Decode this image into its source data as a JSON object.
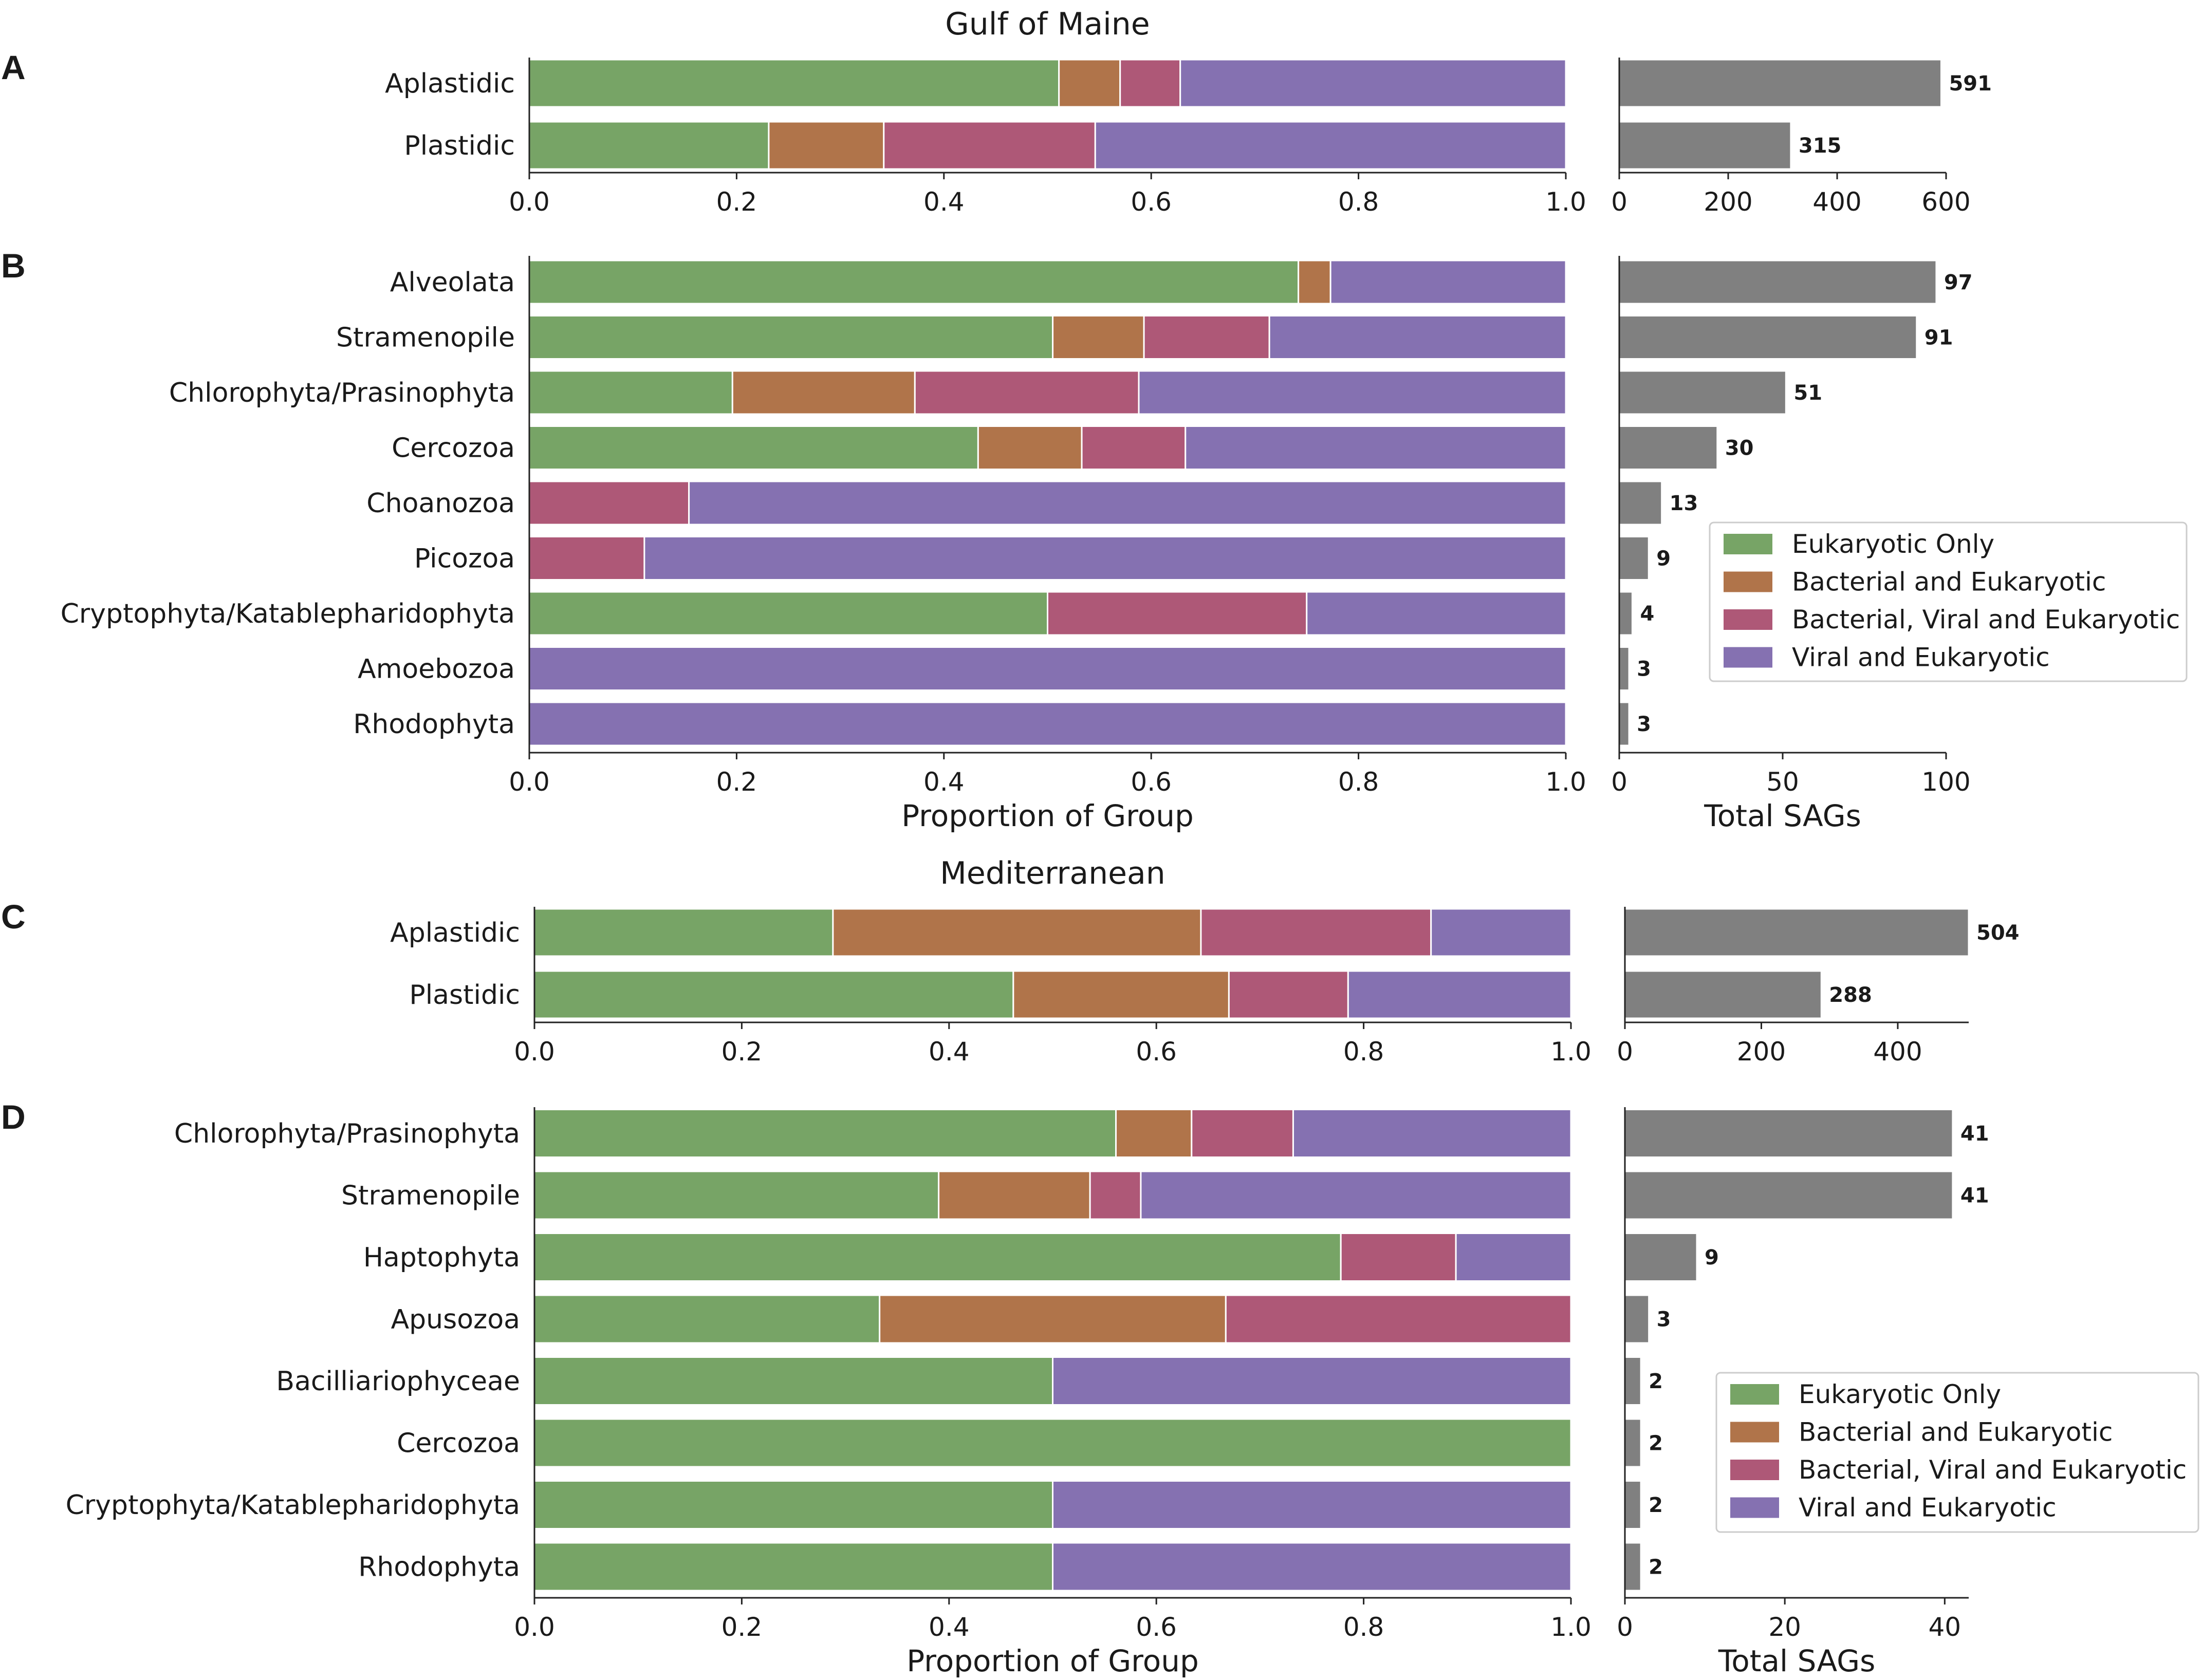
{
  "legend_items": [
    {
      "name": "Eukaryotic Only",
      "color": "#77a466"
    },
    {
      "name": "Bacterial and Eukaryotic",
      "color": "#b0744a"
    },
    {
      "name": "Bacterial, Viral and Eukaryotic",
      "color": "#ae5877"
    },
    {
      "name": "Viral and Eukaryotic",
      "color": "#8571b1"
    }
  ],
  "count_bar_color": "#808080",
  "chart_data": [
    {
      "panel": "A",
      "type": "bar",
      "orientation": "horizontal",
      "stacked": true,
      "title": "Gulf of Maine",
      "categories": [
        "Aplastidic",
        "Plastidic"
      ],
      "series": [
        {
          "name": "Eukaryotic Only",
          "values": [
            0.511,
            0.231
          ]
        },
        {
          "name": "Bacterial and Eukaryotic",
          "values": [
            0.059,
            0.111
          ]
        },
        {
          "name": "Bacterial, Viral and Eukaryotic",
          "values": [
            0.058,
            0.204
          ]
        },
        {
          "name": "Viral and Eukaryotic",
          "values": [
            0.372,
            0.454
          ]
        }
      ],
      "xlim": [
        0,
        1
      ],
      "xticks": [
        "0.0",
        "0.2",
        "0.4",
        "0.6",
        "0.8",
        "1.0"
      ],
      "xlabel": ""
    },
    {
      "panel": "A",
      "type": "bar",
      "orientation": "horizontal",
      "categories": [
        "Aplastidic",
        "Plastidic"
      ],
      "values": [
        591,
        315
      ],
      "xlim": [
        0,
        600
      ],
      "xticks": [
        "0",
        "200",
        "400",
        "600"
      ],
      "xlabel": ""
    },
    {
      "panel": "B",
      "type": "bar",
      "orientation": "horizontal",
      "stacked": true,
      "categories": [
        "Alveolata",
        "Stramenopile",
        "Chlorophyta/Prasinophyta",
        "Cercozoa",
        "Choanozoa",
        "Picozoa",
        "Cryptophyta/Katablepharidophyta",
        "Amoebozoa",
        "Rhodophyta"
      ],
      "series": [
        {
          "name": "Eukaryotic Only",
          "values": [
            0.742,
            0.505,
            0.196,
            0.433,
            0,
            0,
            0.5,
            0,
            0
          ]
        },
        {
          "name": "Bacterial and Eukaryotic",
          "values": [
            0.031,
            0.088,
            0.176,
            0.1,
            0,
            0,
            0,
            0,
            0
          ]
        },
        {
          "name": "Bacterial, Viral and Eukaryotic",
          "values": [
            0,
            0.121,
            0.216,
            0.1,
            0.154,
            0.111,
            0.25,
            0,
            0
          ]
        },
        {
          "name": "Viral and Eukaryotic",
          "values": [
            0.227,
            0.286,
            0.412,
            0.367,
            0.846,
            0.889,
            0.25,
            1,
            1
          ]
        }
      ],
      "xlim": [
        0,
        1
      ],
      "xticks": [
        "0.0",
        "0.2",
        "0.4",
        "0.6",
        "0.8",
        "1.0"
      ],
      "xlabel": "Proportion of Group"
    },
    {
      "panel": "B",
      "type": "bar",
      "orientation": "horizontal",
      "categories": [
        "Alveolata",
        "Stramenopile",
        "Chlorophyta/Prasinophyta",
        "Cercozoa",
        "Choanozoa",
        "Picozoa",
        "Cryptophyta/Katablepharidophyta",
        "Amoebozoa",
        "Rhodophyta"
      ],
      "values": [
        97,
        91,
        51,
        30,
        13,
        9,
        4,
        3,
        3
      ],
      "xlim": [
        0,
        100
      ],
      "xticks": [
        "0",
        "50",
        "100"
      ],
      "xlabel": "Total SAGs"
    },
    {
      "panel": "C",
      "type": "bar",
      "orientation": "horizontal",
      "stacked": true,
      "title": "Mediterranean",
      "categories": [
        "Aplastidic",
        "Plastidic"
      ],
      "series": [
        {
          "name": "Eukaryotic Only",
          "values": [
            0.288,
            0.462
          ]
        },
        {
          "name": "Bacterial and Eukaryotic",
          "values": [
            0.355,
            0.208
          ]
        },
        {
          "name": "Bacterial, Viral and Eukaryotic",
          "values": [
            0.222,
            0.115
          ]
        },
        {
          "name": "Viral and Eukaryotic",
          "values": [
            0.135,
            0.215
          ]
        }
      ],
      "xlim": [
        0,
        1
      ],
      "xticks": [
        "0.0",
        "0.2",
        "0.4",
        "0.6",
        "0.8",
        "1.0"
      ],
      "xlabel": ""
    },
    {
      "panel": "C",
      "type": "bar",
      "orientation": "horizontal",
      "categories": [
        "Aplastidic",
        "Plastidic"
      ],
      "values": [
        504,
        288
      ],
      "xlim": [
        0,
        504
      ],
      "xticks": [
        "0",
        "200",
        "400"
      ],
      "xlabel": ""
    },
    {
      "panel": "D",
      "type": "bar",
      "orientation": "horizontal",
      "stacked": true,
      "categories": [
        "Chlorophyta/Prasinophyta",
        "Stramenopile",
        "Haptophyta",
        "Apusozoa",
        "Bacilliariophyceae",
        "Cercozoa",
        "Cryptophyta/Katablepharidophyta",
        "Rhodophyta"
      ],
      "series": [
        {
          "name": "Eukaryotic Only",
          "values": [
            0.561,
            0.39,
            0.778,
            0.333,
            0.5,
            1,
            0.5,
            0.5
          ]
        },
        {
          "name": "Bacterial and Eukaryotic",
          "values": [
            0.073,
            0.146,
            0,
            0.334,
            0,
            0,
            0,
            0
          ]
        },
        {
          "name": "Bacterial, Viral and Eukaryotic",
          "values": [
            0.098,
            0.049,
            0.111,
            0.333,
            0,
            0,
            0,
            0
          ]
        },
        {
          "name": "Viral and Eukaryotic",
          "values": [
            0.268,
            0.415,
            0.111,
            0,
            0.5,
            0,
            0.5,
            0.5
          ]
        }
      ],
      "xlim": [
        0,
        1
      ],
      "xticks": [
        "0.0",
        "0.2",
        "0.4",
        "0.6",
        "0.8",
        "1.0"
      ],
      "xlabel": "Proportion of Group"
    },
    {
      "panel": "D",
      "type": "bar",
      "orientation": "horizontal",
      "categories": [
        "Chlorophyta/Prasinophyta",
        "Stramenopile",
        "Haptophyta",
        "Apusozoa",
        "Bacilliariophyceae",
        "Cercozoa",
        "Cryptophyta/Katablepharidophyta",
        "Rhodophyta"
      ],
      "values": [
        41,
        41,
        9,
        3,
        2,
        2,
        2,
        2
      ],
      "xlim": [
        0,
        43
      ],
      "xticks": [
        "0",
        "20",
        "40"
      ],
      "xlabel": "Total SAGs"
    }
  ]
}
